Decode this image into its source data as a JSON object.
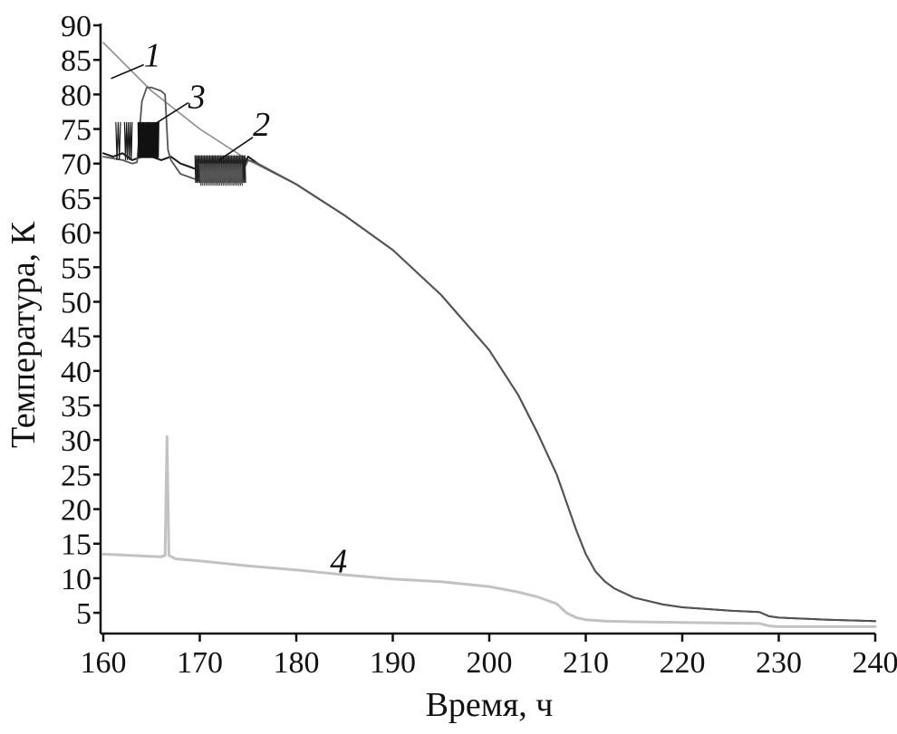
{
  "chart_data": {
    "type": "line",
    "title": "",
    "xlabel": "Время, ч",
    "ylabel": "Температура, К",
    "xlim": [
      160,
      240
    ],
    "ylim": [
      2,
      90
    ],
    "xticks": [
      "160",
      "170",
      "180",
      "190",
      "200",
      "210",
      "220",
      "230",
      "240"
    ],
    "yticks": [
      "5",
      "10",
      "15",
      "20",
      "25",
      "30",
      "35",
      "40",
      "45",
      "50",
      "55",
      "60",
      "65",
      "70",
      "75",
      "80",
      "85",
      "90"
    ],
    "grid": false,
    "legend": "none",
    "series": [
      {
        "name": "1",
        "color": "#8c8c8c",
        "x": [
          160,
          165,
          170,
          175,
          180,
          185,
          190,
          195,
          200,
          203,
          205,
          207,
          208,
          209,
          210,
          211,
          212,
          213,
          215,
          218,
          220,
          225,
          228,
          229,
          230,
          235,
          240
        ],
        "y": [
          87.5,
          80.5,
          75,
          70.5,
          67,
          62.5,
          57.5,
          51,
          43,
          36.5,
          31,
          25,
          21,
          17,
          13.5,
          11,
          9.5,
          8.5,
          7.2,
          6.2,
          5.8,
          5.3,
          5.1,
          4.5,
          4.3,
          4.0,
          3.8
        ]
      },
      {
        "name": "2",
        "color": "#1a1a1a",
        "x": [
          160,
          161,
          162,
          163,
          164,
          165,
          166,
          167,
          168,
          169,
          170,
          171,
          172,
          173,
          174,
          175,
          176,
          178,
          180,
          185,
          190,
          195,
          200,
          203,
          205,
          207,
          208,
          209,
          210,
          211,
          212,
          213,
          215,
          218,
          220,
          225,
          228,
          229,
          230,
          235,
          240
        ],
        "y": [
          71.5,
          71,
          71.5,
          70.5,
          71,
          71,
          70.5,
          71,
          70,
          69.5,
          69,
          70,
          68.5,
          70,
          68,
          71,
          70,
          68.5,
          67,
          62.5,
          57.5,
          51,
          43,
          36.5,
          31,
          25,
          21,
          17,
          13.5,
          11,
          9.5,
          8.5,
          7.2,
          6.2,
          5.8,
          5.3,
          5.1,
          4.5,
          4.3,
          4.0,
          3.8
        ]
      },
      {
        "name": "3",
        "color": "#555555",
        "x": [
          160,
          162,
          163,
          163.5,
          164,
          164.5,
          165,
          166,
          166.4,
          166.7,
          167,
          168,
          169,
          170,
          172,
          174,
          175,
          176,
          178,
          180,
          185,
          190,
          195,
          200,
          203,
          205,
          207,
          208,
          209,
          210,
          211,
          212,
          213,
          215,
          218,
          220,
          225,
          228,
          229,
          230,
          235,
          240
        ],
        "y": [
          71,
          70.5,
          70,
          70.2,
          79,
          81,
          81,
          80.5,
          80,
          72,
          70.5,
          68.5,
          68,
          67.5,
          67.5,
          67.5,
          70.5,
          70,
          68.5,
          67,
          62.5,
          57.5,
          51,
          43,
          36.5,
          31,
          25,
          21,
          17,
          13.5,
          11,
          9.5,
          8.5,
          7.2,
          6.2,
          5.8,
          5.3,
          5.1,
          4.5,
          4.3,
          4.0,
          3.8
        ]
      },
      {
        "name": "4",
        "color": "#c2c2c2",
        "x": [
          160,
          163,
          166,
          166.4,
          166.6,
          166.8,
          167.5,
          170,
          175,
          180,
          185,
          190,
          195,
          200,
          203,
          205,
          207,
          208,
          209,
          210,
          212,
          215,
          220,
          225,
          228,
          229,
          230,
          235,
          240
        ],
        "y": [
          13.5,
          13.3,
          13.1,
          13.3,
          30.5,
          13.3,
          12.8,
          12.5,
          11.8,
          11.2,
          10.5,
          9.9,
          9.5,
          8.8,
          8.0,
          7.3,
          6.3,
          5.0,
          4.3,
          4.0,
          3.8,
          3.7,
          3.6,
          3.5,
          3.45,
          3.1,
          3.0,
          3.0,
          3.0
        ]
      }
    ],
    "annotations": [
      {
        "text": "1",
        "x": 164.2,
        "y": 85.6,
        "anchor_x": 164.2,
        "anchor_y": 84.3,
        "line_to_x": 160.8,
        "line_to_y": 82.3
      },
      {
        "text": "3",
        "x": 168.8,
        "y": 79.6,
        "anchor_x": 168.8,
        "anchor_y": 78.8,
        "line_to_x": 165.2,
        "line_to_y": 75.6
      },
      {
        "text": "2",
        "x": 175.5,
        "y": 75.6,
        "anchor_x": 175.5,
        "anchor_y": 73.8,
        "line_to_x": 172,
        "line_to_y": 70.5
      },
      {
        "text": "4",
        "x": 183.5,
        "y": 12.4,
        "anchor_x": null,
        "anchor_y": null,
        "line_to_x": null,
        "line_to_y": null
      }
    ]
  }
}
